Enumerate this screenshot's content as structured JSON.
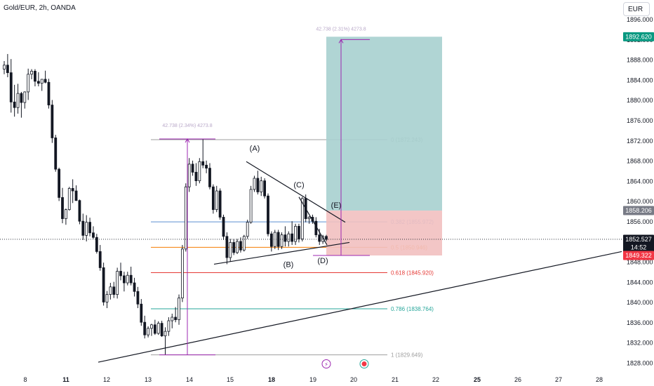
{
  "header": {
    "title": "Gold/EUR, 2h, OANDA",
    "currency_button": "EUR"
  },
  "colors": {
    "up_candle": "#131722",
    "down_candle": "#131722",
    "profit_zone": "#a7d0cf",
    "loss_zone": "#f2c0c0",
    "measure": "#9c27b0",
    "fib_0": "#9e9e9e",
    "fib_0382": "#5b8fd1",
    "fib_05": "#f57c00",
    "fib_0618": "#e53935",
    "fib_0786": "#26a69a",
    "fib_1": "#9e9e9e",
    "price_tag_green": "#089981",
    "price_tag_red": "#f23645",
    "price_tag_dark": "#131722",
    "price_tag_grey": "#787b86"
  },
  "chart_data": {
    "type": "candlestick",
    "symbol": "Gold/EUR",
    "interval": "2h",
    "exchange": "OANDA",
    "x_ticks": [
      "8",
      "11",
      "12",
      "13",
      "14",
      "15",
      "18",
      "19",
      "20",
      "21",
      "22",
      "25",
      "26",
      "27",
      "28"
    ],
    "x_tick_bold": [
      "11",
      "18",
      "25"
    ],
    "y_ticks": [
      "1896.000",
      "1892.000",
      "1888.000",
      "1884.000",
      "1880.000",
      "1876.000",
      "1872.000",
      "1868.000",
      "1864.000",
      "1860.000",
      "1856.000",
      "1852.000",
      "1848.000",
      "1844.000",
      "1840.000",
      "1836.000",
      "1832.000",
      "1828.000"
    ],
    "ylim": [
      1826.5,
      1898
    ],
    "price_tags": [
      {
        "label": "1892.620",
        "value": 1892.62,
        "color": "green"
      },
      {
        "label": "1858.206",
        "value": 1858.206,
        "color": "grey"
      },
      {
        "label": "1852.527",
        "value": 1852.527,
        "color": "dark"
      },
      {
        "label": "14:52",
        "value": 1850.9,
        "color": "dark"
      },
      {
        "label": "1849.322",
        "value": 1849.322,
        "color": "red"
      }
    ],
    "current_price": 1852.527,
    "fib_levels": [
      {
        "ratio": "0",
        "label": "0 (1872.243)",
        "value": 1872.243,
        "color": "fib_0"
      },
      {
        "ratio": "0.382",
        "label": "0.382 (1855.972)",
        "value": 1855.972,
        "color": "fib_0382"
      },
      {
        "ratio": "0.5",
        "label": "0.5 (1850.946)",
        "value": 1850.946,
        "color": "fib_05"
      },
      {
        "ratio": "0.618",
        "label": "0.618 (1845.920)",
        "value": 1845.92,
        "color": "fib_0618"
      },
      {
        "ratio": "0.786",
        "label": "0.786 (1838.764)",
        "value": 1838.764,
        "color": "fib_0786"
      },
      {
        "ratio": "1",
        "label": "1 (1829.649)",
        "value": 1829.649,
        "color": "fib_1"
      }
    ],
    "measures": [
      {
        "label": "42.738 (2.34%) 4273.8",
        "from": 1829.649,
        "to": 1872.387
      },
      {
        "label": "42.738 (2.31%) 4273.8",
        "from": 1849.322,
        "to": 1892.06
      }
    ],
    "position": {
      "entry": 1858.206,
      "target": 1892.62,
      "stop": 1849.322
    },
    "wave_labels": [
      "(A)",
      "(B)",
      "(C)",
      "(D)",
      "(E)"
    ],
    "candles": [
      [
        1886.2,
        1887.8,
        1885.2,
        1887.0
      ],
      [
        1887.0,
        1889.2,
        1884.6,
        1885.5
      ],
      [
        1885.5,
        1888.2,
        1877.6,
        1879.7
      ],
      [
        1879.7,
        1883.1,
        1876.8,
        1878.6
      ],
      [
        1878.6,
        1883.3,
        1877.4,
        1881.4
      ],
      [
        1881.4,
        1881.7,
        1876.6,
        1879.6
      ],
      [
        1879.6,
        1881.8,
        1878.4,
        1881.7
      ],
      [
        1881.7,
        1886.3,
        1880.1,
        1885.2
      ],
      [
        1885.2,
        1886.2,
        1884.2,
        1885.8
      ],
      [
        1885.8,
        1886.2,
        1882.8,
        1883.8
      ],
      [
        1883.8,
        1885.6,
        1882.8,
        1883.4
      ],
      [
        1883.4,
        1884.1,
        1881.9,
        1884.2
      ],
      [
        1884.2,
        1885.9,
        1883.4,
        1883.6
      ],
      [
        1883.6,
        1884.3,
        1878.4,
        1879.1
      ],
      [
        1879.1,
        1880.1,
        1871.6,
        1872.6
      ],
      [
        1872.6,
        1873.2,
        1865.9,
        1866.4
      ],
      [
        1866.4,
        1866.7,
        1860.1,
        1860.8
      ],
      [
        1860.8,
        1862.7,
        1855.7,
        1856.6
      ],
      [
        1856.6,
        1858.6,
        1855.4,
        1858.4
      ],
      [
        1858.4,
        1862.9,
        1858.2,
        1862.6
      ],
      [
        1862.6,
        1864.4,
        1859.7,
        1862.1
      ],
      [
        1862.1,
        1863.2,
        1860.1,
        1860.2
      ],
      [
        1860.2,
        1860.4,
        1855.5,
        1856.1
      ],
      [
        1856.1,
        1857.6,
        1852.4,
        1853.3
      ],
      [
        1853.3,
        1857.3,
        1852.1,
        1855.9
      ],
      [
        1855.9,
        1856.8,
        1853.1,
        1853.8
      ],
      [
        1853.8,
        1855.1,
        1852.6,
        1852.9
      ],
      [
        1852.9,
        1853.6,
        1849.7,
        1850.1
      ],
      [
        1850.1,
        1851.4,
        1846.3,
        1846.9
      ],
      [
        1846.9,
        1847.9,
        1839.4,
        1840.1
      ],
      [
        1840.1,
        1842.3,
        1838.9,
        1841.6
      ],
      [
        1841.6,
        1843.9,
        1840.6,
        1843.1
      ],
      [
        1843.1,
        1844.1,
        1840.9,
        1841.6
      ],
      [
        1841.6,
        1846.9,
        1840.8,
        1846.2
      ],
      [
        1846.2,
        1847.9,
        1844.4,
        1845.3
      ],
      [
        1845.3,
        1846.1,
        1842.2,
        1843.9
      ],
      [
        1843.9,
        1846.1,
        1843.4,
        1845.4
      ],
      [
        1845.4,
        1847.1,
        1843.4,
        1843.9
      ],
      [
        1843.9,
        1844.9,
        1841.2,
        1842.2
      ],
      [
        1842.2,
        1843.1,
        1838.9,
        1839.7
      ],
      [
        1839.7,
        1840.7,
        1835.4,
        1836.1
      ],
      [
        1836.1,
        1837.4,
        1832.9,
        1833.6
      ],
      [
        1833.6,
        1835.3,
        1833.1,
        1834.9
      ],
      [
        1834.9,
        1835.8,
        1833.4,
        1835.6
      ],
      [
        1835.6,
        1836.6,
        1833.6,
        1833.9
      ],
      [
        1833.9,
        1836.3,
        1833.6,
        1835.9
      ],
      [
        1835.9,
        1836.4,
        1833.2,
        1833.4
      ],
      [
        1833.4,
        1835.1,
        1829.6,
        1834.3
      ],
      [
        1834.3,
        1837.1,
        1833.4,
        1836.4
      ],
      [
        1836.4,
        1837.8,
        1834.9,
        1837.1
      ],
      [
        1837.1,
        1839.1,
        1836.1,
        1836.6
      ],
      [
        1836.6,
        1841.6,
        1835.6,
        1840.9
      ],
      [
        1840.9,
        1851.4,
        1840.1,
        1850.6
      ],
      [
        1850.6,
        1863.6,
        1850.1,
        1862.9
      ],
      [
        1862.9,
        1868.6,
        1861.9,
        1867.4
      ],
      [
        1867.4,
        1868.1,
        1865.1,
        1865.8
      ],
      [
        1865.8,
        1867.6,
        1863.1,
        1864.1
      ],
      [
        1864.1,
        1868.6,
        1863.6,
        1867.9
      ],
      [
        1867.9,
        1872.4,
        1866.6,
        1867.2
      ],
      [
        1867.2,
        1868.1,
        1865.6,
        1866.6
      ],
      [
        1866.6,
        1867.6,
        1862.4,
        1862.9
      ],
      [
        1862.9,
        1863.4,
        1857.6,
        1858.4
      ],
      [
        1858.4,
        1863.1,
        1857.9,
        1862.1
      ],
      [
        1862.1,
        1862.6,
        1856.4,
        1856.9
      ],
      [
        1856.9,
        1857.4,
        1852.4,
        1853.1
      ],
      [
        1853.1,
        1853.9,
        1847.6,
        1848.9
      ],
      [
        1848.9,
        1852.6,
        1848.1,
        1851.9
      ],
      [
        1851.9,
        1852.6,
        1849.4,
        1849.9
      ],
      [
        1849.9,
        1852.6,
        1849.6,
        1852.1
      ],
      [
        1852.1,
        1852.9,
        1849.9,
        1850.4
      ],
      [
        1850.4,
        1853.4,
        1850.1,
        1853.1
      ],
      [
        1853.1,
        1856.4,
        1852.6,
        1855.9
      ],
      [
        1855.9,
        1863.1,
        1855.6,
        1862.4
      ],
      [
        1862.4,
        1865.1,
        1861.9,
        1864.6
      ],
      [
        1864.6,
        1866.1,
        1861.4,
        1861.9
      ],
      [
        1861.9,
        1864.9,
        1861.1,
        1864.1
      ],
      [
        1864.1,
        1864.6,
        1860.6,
        1861.1
      ],
      [
        1861.1,
        1861.6,
        1853.1,
        1853.6
      ],
      [
        1853.6,
        1854.1,
        1850.1,
        1851.1
      ],
      [
        1851.1,
        1854.4,
        1850.6,
        1853.9
      ],
      [
        1853.9,
        1854.4,
        1850.4,
        1851.1
      ],
      [
        1851.1,
        1853.9,
        1850.6,
        1853.4
      ],
      [
        1853.4,
        1855.1,
        1851.1,
        1852.1
      ],
      [
        1852.1,
        1854.1,
        1851.1,
        1853.6
      ],
      [
        1853.6,
        1856.1,
        1851.4,
        1852.1
      ],
      [
        1852.1,
        1855.6,
        1851.4,
        1855.1
      ],
      [
        1855.1,
        1855.6,
        1851.9,
        1852.6
      ],
      [
        1852.6,
        1860.9,
        1852.1,
        1860.6
      ],
      [
        1860.6,
        1861.4,
        1855.9,
        1856.6
      ],
      [
        1856.6,
        1857.1,
        1855.6,
        1856.9
      ],
      [
        1856.9,
        1857.4,
        1855.6,
        1856.1
      ],
      [
        1856.1,
        1856.9,
        1852.9,
        1853.4
      ],
      [
        1853.4,
        1854.6,
        1851.4,
        1852.1
      ],
      [
        1852.1,
        1853.4,
        1851.6,
        1853.1
      ],
      [
        1853.1,
        1853.4,
        1852.1,
        1852.5
      ]
    ]
  }
}
